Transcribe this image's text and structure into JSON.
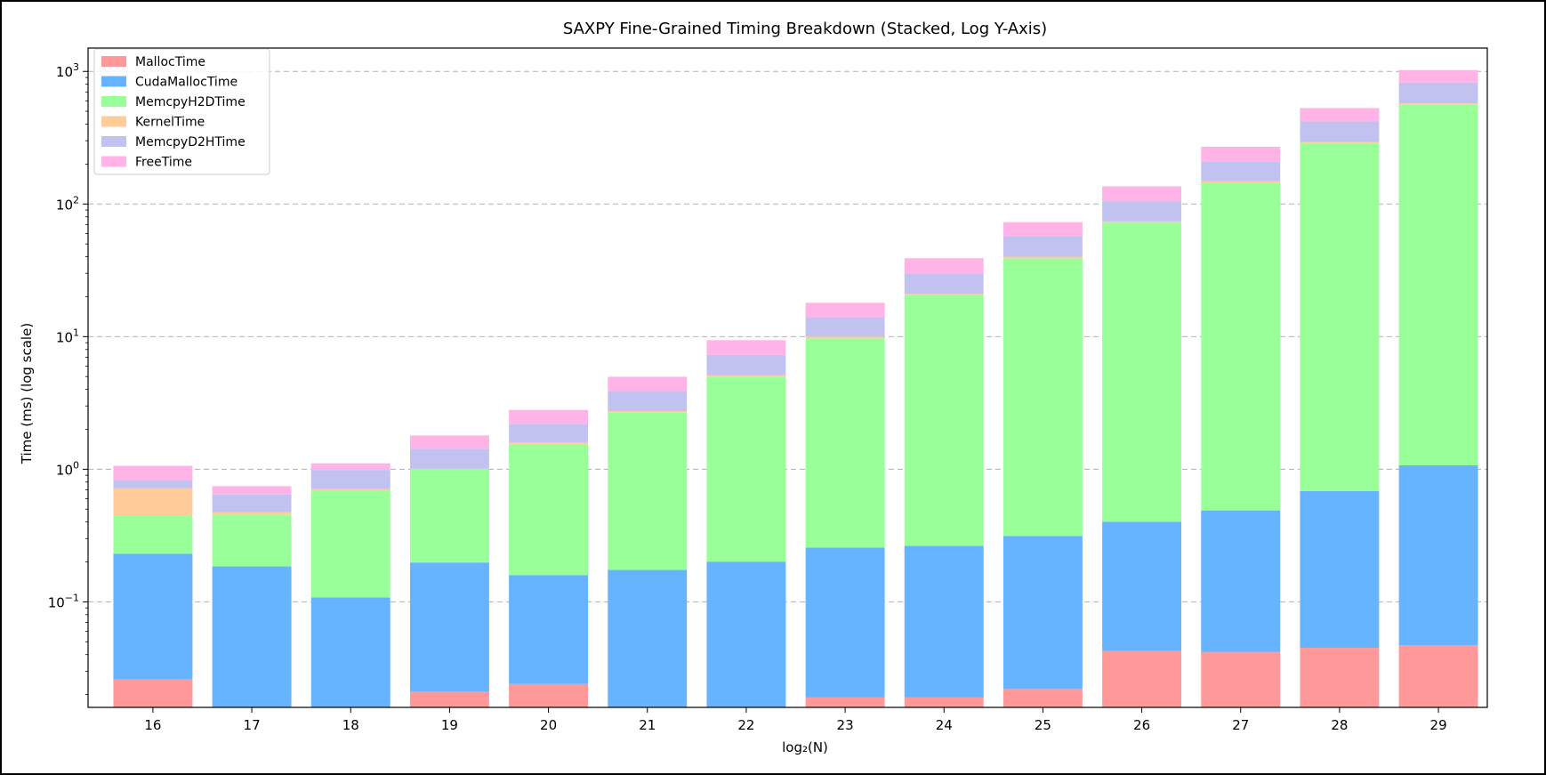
{
  "chart_data": {
    "type": "bar",
    "stacked": true,
    "yscale": "log",
    "title": "SAXPY Fine-Grained Timing Breakdown (Stacked, Log Y-Axis)",
    "xlabel": "log₂(N)",
    "ylabel": "Time (ms) (log scale)",
    "ylim": [
      0.016,
      1500
    ],
    "yticks": [
      {
        "value": 0.1,
        "base": "10",
        "exp": "−1"
      },
      {
        "value": 1,
        "base": "10",
        "exp": "0"
      },
      {
        "value": 10,
        "base": "10",
        "exp": "1"
      },
      {
        "value": 100,
        "base": "10",
        "exp": "2"
      },
      {
        "value": 1000,
        "base": "10",
        "exp": "3"
      }
    ],
    "grid": "y-dashed",
    "legend_position": "top-left",
    "categories": [
      "16",
      "17",
      "18",
      "19",
      "20",
      "21",
      "22",
      "23",
      "24",
      "25",
      "26",
      "27",
      "28",
      "29"
    ],
    "series": [
      {
        "name": "MallocTime",
        "color": "#ff9999",
        "values": [
          0.026,
          0.0,
          0.0,
          0.021,
          0.024,
          0.0,
          0.0,
          0.019,
          0.019,
          0.022,
          0.043,
          0.042,
          0.045,
          0.047
        ]
      },
      {
        "name": "CudaMallocTime",
        "color": "#66b3ff",
        "values": [
          0.204,
          0.185,
          0.108,
          0.177,
          0.135,
          0.174,
          0.201,
          0.238,
          0.245,
          0.292,
          0.359,
          0.447,
          0.639,
          1.023
        ]
      },
      {
        "name": "MemcpyH2DTime",
        "color": "#99ff99",
        "values": [
          0.22,
          0.27,
          0.58,
          0.8,
          1.38,
          2.5,
          4.75,
          9.43,
          20.5,
          38.5,
          72.0,
          145.0,
          288.0,
          563.0
        ]
      },
      {
        "name": "KernelTime",
        "color": "#ffcc99",
        "values": [
          0.27,
          0.02,
          0.02,
          0.01,
          0.06,
          0.07,
          0.15,
          0.31,
          0.24,
          1.2,
          1.6,
          2.5,
          5.3,
          10.0
        ]
      },
      {
        "name": "MemcpyD2HTime",
        "color": "#c2c2f0",
        "values": [
          0.11,
          0.17,
          0.28,
          0.42,
          0.6,
          1.14,
          2.2,
          4.0,
          9.0,
          17.0,
          31.0,
          62.0,
          125.0,
          250.0
        ]
      },
      {
        "name": "FreeTime",
        "color": "#ffb3e6",
        "values": [
          0.23,
          0.1,
          0.12,
          0.37,
          0.6,
          1.1,
          2.1,
          4.0,
          9.0,
          16.0,
          31.0,
          60.0,
          110.0,
          200.0
        ]
      }
    ]
  }
}
